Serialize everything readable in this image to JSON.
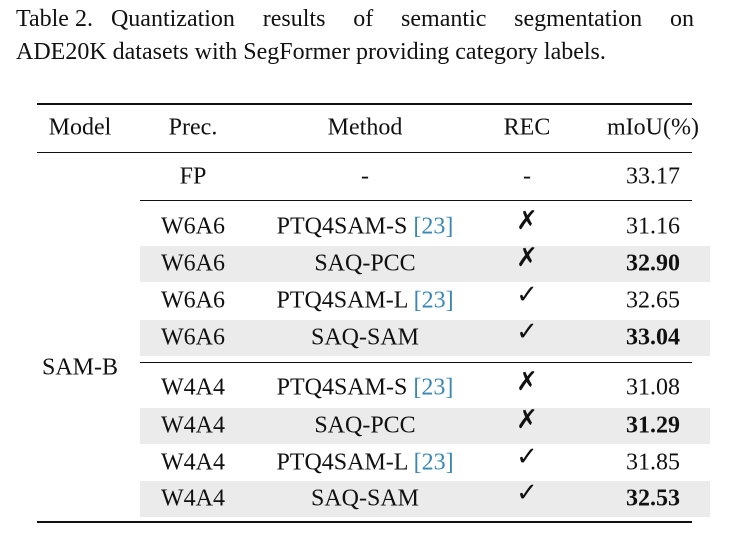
{
  "caption": {
    "label": "Table 2.",
    "lines": [
      "Quantization results of semantic segmentation on",
      "ADE20K datasets with SegFormer providing category labels."
    ]
  },
  "table": {
    "header": [
      "Model",
      "Prec.",
      "Method",
      "REC",
      "mIoU(%)"
    ],
    "model": "SAM-B",
    "rows": [
      {
        "prec": "FP",
        "method": "-",
        "rec": "-",
        "miou": "33.17"
      },
      {
        "prec": "W6A6",
        "method": "PTQ4SAM-S",
        "cite": "[23]",
        "rec": "✗",
        "miou": "31.16"
      },
      {
        "prec": "W6A6",
        "method": "SAQ-PCC",
        "rec": "✗",
        "miou": "32.90",
        "highlight": true
      },
      {
        "prec": "W6A6",
        "method": "PTQ4SAM-L",
        "cite": "[23]",
        "rec": "✓",
        "miou": "32.65"
      },
      {
        "prec": "W6A6",
        "method": "SAQ-SAM",
        "rec": "✓",
        "miou": "33.04",
        "highlight": true
      },
      {
        "prec": "W4A4",
        "method": "PTQ4SAM-S",
        "cite": "[23]",
        "rec": "✗",
        "miou": "31.08"
      },
      {
        "prec": "W4A4",
        "method": "SAQ-PCC",
        "rec": "✗",
        "miou": "31.29",
        "highlight": true
      },
      {
        "prec": "W4A4",
        "method": "PTQ4SAM-L",
        "cite": "[23]",
        "rec": "✓",
        "miou": "31.85"
      },
      {
        "prec": "W4A4",
        "method": "SAQ-SAM",
        "rec": "✓",
        "miou": "32.53",
        "highlight": true
      }
    ]
  }
}
